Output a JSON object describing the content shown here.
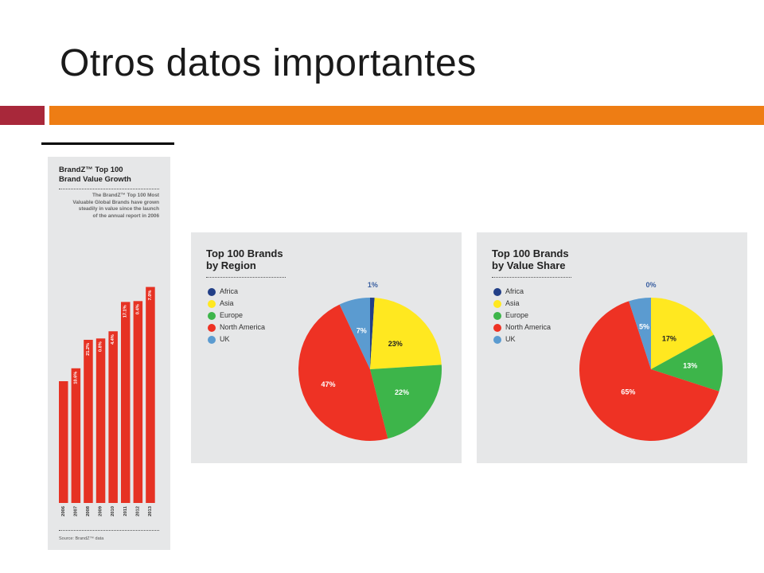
{
  "slide": {
    "title": "Otros datos importantes",
    "colors": {
      "accent_red": "#a8283a",
      "accent_orange": "#ee7d14"
    }
  },
  "growth_panel": {
    "title_line1": "BrandZ™ Top 100",
    "title_line2": "Brand Value Growth",
    "description_lines": [
      "The BrandZ™ Top 100 Most",
      "Valuable Global Brands have grown",
      "steadily in value since the launch",
      "of the annual report in 2006"
    ],
    "source": "Source: BrandZ™ data"
  },
  "region_panel": {
    "title_line1": "Top 100 Brands",
    "title_line2": "by Region"
  },
  "value_panel": {
    "title_line1": "Top 100 Brands",
    "title_line2": "by Value Share"
  },
  "chart_data": [
    {
      "type": "bar",
      "title": "BrandZ™ Top 100 Brand Value Growth",
      "categories": [
        "2006",
        "2007",
        "2008",
        "2009",
        "2010",
        "2011",
        "2012",
        "2013"
      ],
      "values": [
        100,
        110.6,
        134.0,
        135.1,
        141.0,
        165.1,
        165.8,
        177.4
      ],
      "labels": [
        "",
        "10.6%",
        "21.2%",
        "0.8%",
        "4.4%",
        "17.1%",
        "0.4%",
        "7.0%"
      ],
      "color": "#e63223"
    },
    {
      "type": "pie",
      "title": "Top 100 Brands by Region",
      "legend": [
        "Africa",
        "Asia",
        "Europe",
        "North America",
        "UK"
      ],
      "slices": [
        {
          "name": "Africa",
          "value": 1,
          "label": "1%",
          "color": "#223f87"
        },
        {
          "name": "Asia",
          "value": 23,
          "label": "23%",
          "color": "#ffe820"
        },
        {
          "name": "Europe",
          "value": 22,
          "label": "22%",
          "color": "#3db54a"
        },
        {
          "name": "North America",
          "value": 47,
          "label": "47%",
          "color": "#ee3224"
        },
        {
          "name": "UK",
          "value": 7,
          "label": "7%",
          "color": "#5b9bd0"
        }
      ]
    },
    {
      "type": "pie",
      "title": "Top 100 Brands by Value Share",
      "legend": [
        "Africa",
        "Asia",
        "Europe",
        "North America",
        "UK"
      ],
      "slices": [
        {
          "name": "Africa",
          "value": 0,
          "label": "0%",
          "color": "#223f87"
        },
        {
          "name": "Asia",
          "value": 17,
          "label": "17%",
          "color": "#ffe820"
        },
        {
          "name": "Europe",
          "value": 13,
          "label": "13%",
          "color": "#3db54a"
        },
        {
          "name": "North America",
          "value": 65,
          "label": "65%",
          "color": "#ee3224"
        },
        {
          "name": "UK",
          "value": 5,
          "label": "5%",
          "color": "#5b9bd0"
        }
      ]
    }
  ]
}
